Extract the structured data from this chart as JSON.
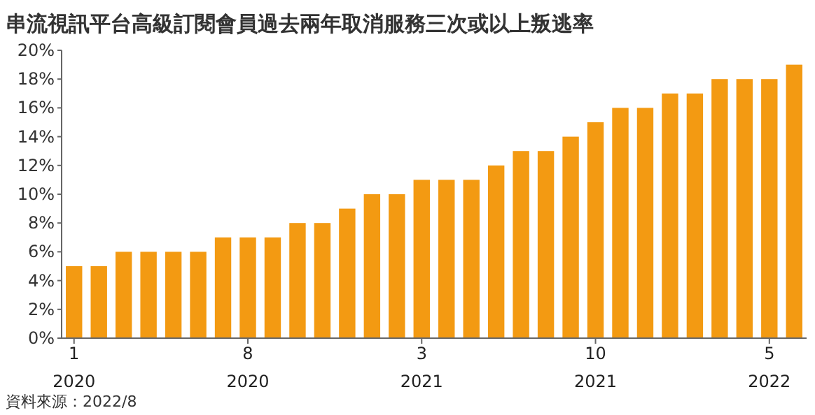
{
  "chart_data": {
    "type": "bar",
    "title": "串流視訊平台高級訂閱會員過去兩年取消服務三次或以上叛逃率",
    "categories": [
      "1\n2020",
      null,
      null,
      null,
      null,
      null,
      null,
      "8\n2020",
      null,
      null,
      null,
      null,
      null,
      null,
      "3\n2021",
      null,
      null,
      null,
      null,
      null,
      null,
      "10\n2021",
      null,
      null,
      null,
      null,
      null,
      null,
      "5\n2022",
      null
    ],
    "values": [
      5,
      5,
      6,
      6,
      6,
      6,
      7,
      7,
      7,
      8,
      8,
      9,
      10,
      10,
      11,
      11,
      11,
      12,
      13,
      13,
      14,
      15,
      16,
      16,
      17,
      17,
      18,
      18,
      18,
      19
    ],
    "color": "#f39a12",
    "ylim": [
      0,
      20
    ],
    "yticks": [
      {
        "value": 0,
        "label": "0%"
      },
      {
        "value": 2,
        "label": "2%"
      },
      {
        "value": 4,
        "label": "4%"
      },
      {
        "value": 6,
        "label": "6%"
      },
      {
        "value": 8,
        "label": "8%"
      },
      {
        "value": 10,
        "label": "10%"
      },
      {
        "value": 12,
        "label": "12%"
      },
      {
        "value": 14,
        "label": "14%"
      },
      {
        "value": 16,
        "label": "16%"
      },
      {
        "value": 18,
        "label": "18%"
      },
      {
        "value": 20,
        "label": "20%"
      }
    ],
    "grid": false,
    "annotations": [
      "資料來源：2022/8"
    ]
  }
}
